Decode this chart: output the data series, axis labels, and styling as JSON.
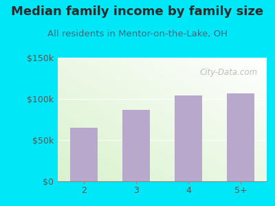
{
  "title": "Median family income by family size",
  "subtitle": "All residents in Mentor-on-the-Lake, OH",
  "categories": [
    "2",
    "3",
    "4",
    "5+"
  ],
  "values": [
    65000,
    87000,
    104000,
    107000
  ],
  "bar_color": "#b8a8cc",
  "background_outer": "#00e8f8",
  "title_color": "#2a2a2a",
  "subtitle_color": "#3a6a7a",
  "tick_label_color": "#555555",
  "ylim": [
    0,
    150000
  ],
  "yticks": [
    0,
    50000,
    100000,
    150000
  ],
  "ytick_labels": [
    "$0",
    "$50k",
    "$100k",
    "$150k"
  ],
  "watermark": "City-Data.com",
  "title_fontsize": 13,
  "subtitle_fontsize": 9.5,
  "tick_fontsize": 9
}
